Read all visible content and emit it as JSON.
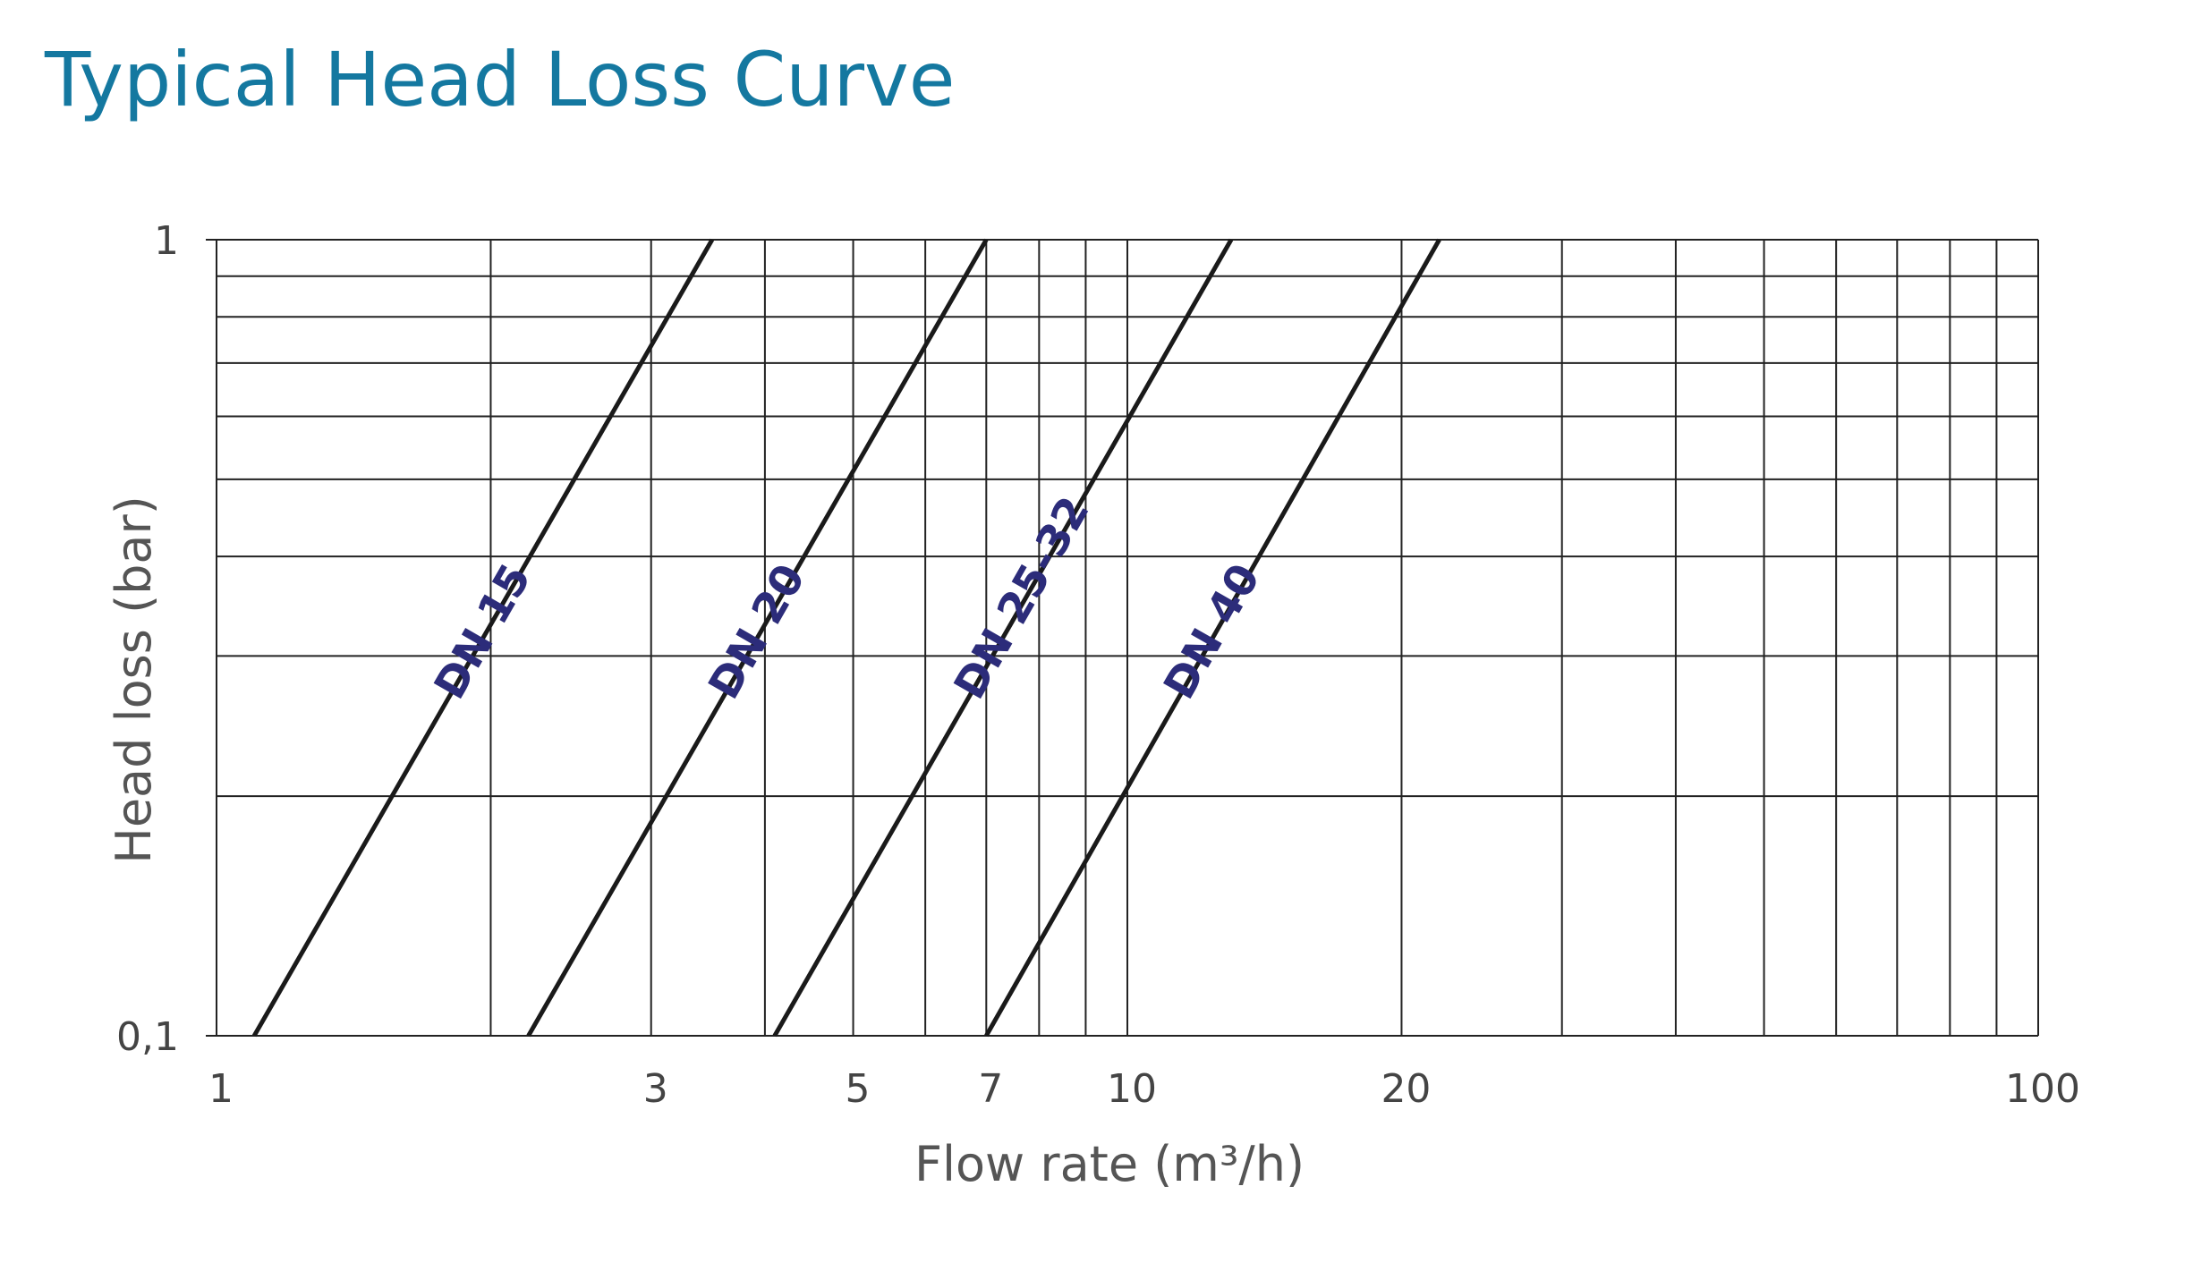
{
  "chart_data": {
    "type": "line",
    "title": "Typical Head Loss Curve",
    "xlabel": "Flow rate (m³/h)",
    "ylabel": "Head loss (bar)",
    "xscale": "log",
    "yscale": "log",
    "xlim": [
      1,
      100
    ],
    "ylim": [
      0.1,
      1
    ],
    "x_ticks": [
      {
        "value": 1,
        "label": "1"
      },
      {
        "value": 3,
        "label": "3"
      },
      {
        "value": 5,
        "label": "5"
      },
      {
        "value": 7,
        "label": "7"
      },
      {
        "value": 10,
        "label": "10"
      },
      {
        "value": 20,
        "label": "20"
      },
      {
        "value": 100,
        "label": "100"
      }
    ],
    "y_ticks": [
      {
        "value": 0.1,
        "label": "0,1"
      },
      {
        "value": 1,
        "label": "1"
      }
    ],
    "grid": true,
    "series": [
      {
        "name": "DN 15",
        "x": [
          1.1,
          3.5
        ],
        "y": [
          0.1,
          1
        ]
      },
      {
        "name": "DN 20",
        "x": [
          2.2,
          7.0
        ],
        "y": [
          0.1,
          1
        ]
      },
      {
        "name": "DN 25-32",
        "x": [
          4.1,
          13.0
        ],
        "y": [
          0.1,
          1
        ]
      },
      {
        "name": "DN 40",
        "x": [
          7.0,
          22.0
        ],
        "y": [
          0.1,
          1
        ]
      }
    ],
    "colors": {
      "title": "#1478a0",
      "series_label": "#2c2c7a",
      "curve": "#1a1a1a",
      "grid": "#222222"
    }
  }
}
